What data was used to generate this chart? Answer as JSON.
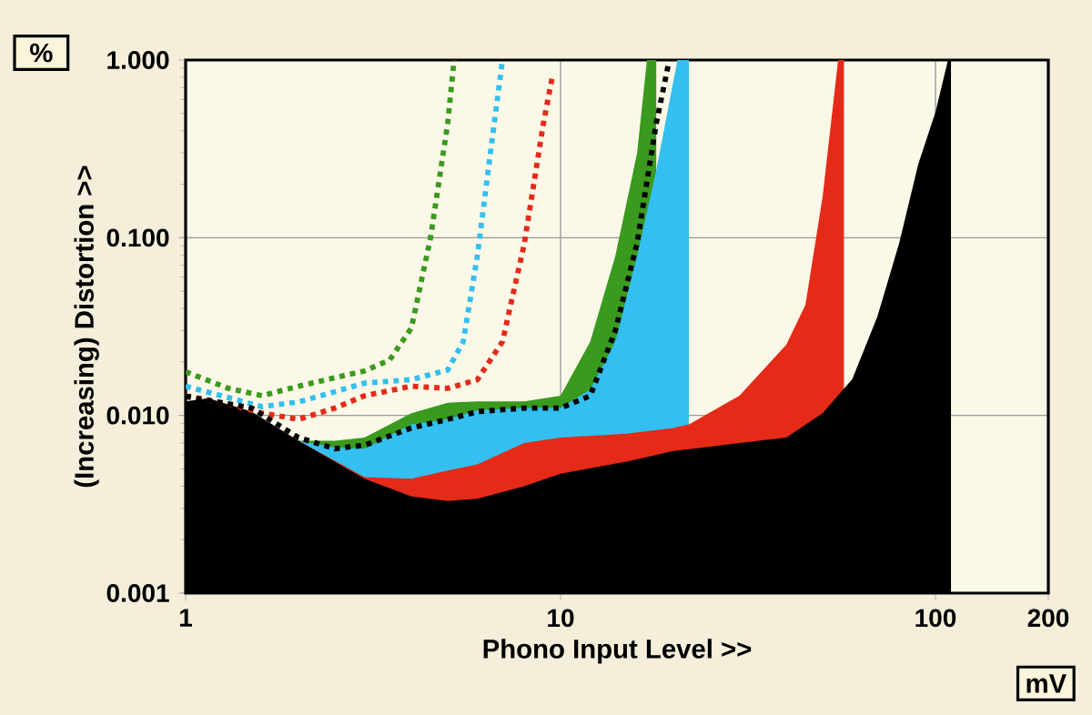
{
  "chart_data": {
    "type": "area",
    "xlabel": "Phono Input Level >>",
    "ylabel": "(Increasing) Distortion >>",
    "annotations": [
      "%",
      "mV"
    ],
    "log": "xy",
    "grid": true,
    "xlim": [
      1,
      200
    ],
    "xticks": [
      1,
      10,
      100,
      200
    ],
    "ylim": [
      0.001,
      1
    ],
    "yticks": [
      {
        "value": 0.001,
        "label": "0.001"
      },
      {
        "value": 0.01,
        "label": "0.010"
      },
      {
        "value": 0.1,
        "label": "0.100"
      },
      {
        "value": 1,
        "label": "1.000"
      }
    ],
    "series": [
      {
        "color": "#3a9a1e",
        "x": [
          2,
          2.5,
          3,
          4,
          5,
          6,
          8,
          10,
          12,
          14,
          16,
          17,
          18
        ],
        "values": [
          0.0072,
          0.0072,
          0.0075,
          0.0103,
          0.0118,
          0.012,
          0.012,
          0.0129,
          0.026,
          0.079,
          0.3,
          1.0,
          1.0
        ]
      },
      {
        "color": "#33bff0",
        "x": [
          2,
          2.5,
          3,
          4,
          5,
          6,
          8,
          10,
          12,
          14,
          16,
          18,
          20.5,
          22
        ],
        "values": [
          0.0072,
          0.0066,
          0.0065,
          0.0089,
          0.0095,
          0.0107,
          0.011,
          0.011,
          0.014,
          0.026,
          0.079,
          0.24,
          1.0,
          1.0
        ]
      },
      {
        "color": "#e52a18",
        "x": [
          2,
          3,
          4,
          5,
          6,
          8,
          10,
          15,
          20,
          22,
          30,
          40,
          45,
          50,
          55,
          57
        ],
        "values": [
          0.0072,
          0.0045,
          0.0044,
          0.0049,
          0.0053,
          0.007,
          0.0075,
          0.0079,
          0.0085,
          0.0089,
          0.0129,
          0.025,
          0.042,
          0.17,
          1.0,
          1.0
        ]
      },
      {
        "color": "#000000",
        "x": [
          1,
          1.15,
          1.5,
          2,
          3,
          4,
          5,
          6,
          8,
          10,
          15,
          20,
          30,
          40,
          50,
          60,
          70,
          80,
          90,
          100,
          108,
          110
        ],
        "values": [
          0.012,
          0.0125,
          0.0105,
          0.0072,
          0.0044,
          0.0035,
          0.0033,
          0.0034,
          0.004,
          0.0047,
          0.0055,
          0.0063,
          0.007,
          0.0075,
          0.0103,
          0.016,
          0.036,
          0.093,
          0.26,
          0.51,
          1.0,
          1.0
        ]
      },
      {
        "type": "line",
        "line_style": "dotted",
        "color": "#3a9a1e",
        "x": [
          1,
          1.3,
          1.6,
          2,
          2.5,
          3,
          3.5,
          4,
          4.5,
          5,
          5.2
        ],
        "values": [
          0.0176,
          0.0142,
          0.0129,
          0.0146,
          0.0163,
          0.0178,
          0.0205,
          0.031,
          0.1,
          0.44,
          1.0
        ]
      },
      {
        "type": "line",
        "line_style": "dotted",
        "color": "#33bff0",
        "x": [
          1,
          1.3,
          1.6,
          2,
          2.5,
          3,
          4,
          5,
          5.5,
          6,
          6.5,
          7
        ],
        "values": [
          0.0146,
          0.0126,
          0.0112,
          0.0119,
          0.0136,
          0.0152,
          0.0159,
          0.018,
          0.026,
          0.079,
          0.3,
          1.0
        ]
      },
      {
        "type": "line",
        "line_style": "dotted",
        "color": "#e52a18",
        "x": [
          1,
          1.3,
          1.6,
          2,
          2.5,
          3,
          4,
          5,
          6,
          7,
          8,
          9,
          9.5
        ],
        "values": [
          0.0129,
          0.0116,
          0.0103,
          0.0095,
          0.011,
          0.0129,
          0.0146,
          0.0142,
          0.0159,
          0.026,
          0.092,
          0.44,
          0.8
        ]
      },
      {
        "type": "line",
        "line_style": "dotted",
        "color": "#000000",
        "x": [
          1,
          1.5,
          2,
          2.5,
          3,
          4,
          5,
          6,
          8,
          10,
          12,
          14,
          16,
          18,
          19.5
        ],
        "values": [
          0.0128,
          0.011,
          0.0075,
          0.0065,
          0.0068,
          0.0085,
          0.0095,
          0.0105,
          0.011,
          0.011,
          0.0129,
          0.03,
          0.093,
          0.44,
          1.0
        ]
      }
    ]
  }
}
